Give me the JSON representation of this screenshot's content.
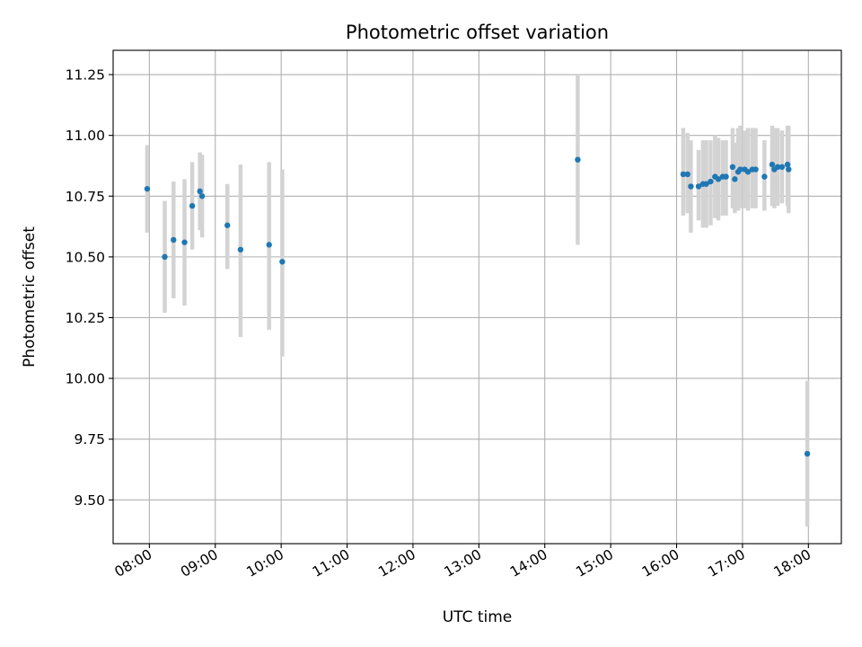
{
  "chart_data": {
    "type": "scatter",
    "title": "Photometric offset variation",
    "xlabel": "UTC time",
    "ylabel": "Photometric offset",
    "x_ticks": [
      "08:00",
      "09:00",
      "10:00",
      "11:00",
      "12:00",
      "13:00",
      "14:00",
      "15:00",
      "16:00",
      "17:00",
      "18:00"
    ],
    "y_ticks": [
      "9.50",
      "9.75",
      "10.00",
      "10.25",
      "10.50",
      "10.75",
      "11.00",
      "11.25"
    ],
    "xlim": [
      "07:27",
      "18:30"
    ],
    "ylim": [
      9.32,
      11.35
    ],
    "grid": true,
    "marker_color": "#1f77b4",
    "errorbar_color": "#d3d3d3",
    "series": [
      {
        "points": [
          {
            "x": "07:58",
            "y": 10.78,
            "ylo": 10.6,
            "yhi": 10.96
          },
          {
            "x": "08:14",
            "y": 10.5,
            "ylo": 10.27,
            "yhi": 10.73
          },
          {
            "x": "08:22",
            "y": 10.57,
            "ylo": 10.33,
            "yhi": 10.81
          },
          {
            "x": "08:32",
            "y": 10.56,
            "ylo": 10.3,
            "yhi": 10.82
          },
          {
            "x": "08:39",
            "y": 10.71,
            "ylo": 10.53,
            "yhi": 10.89
          },
          {
            "x": "08:46",
            "y": 10.77,
            "ylo": 10.61,
            "yhi": 10.93
          },
          {
            "x": "08:48",
            "y": 10.75,
            "ylo": 10.58,
            "yhi": 10.92
          },
          {
            "x": "09:11",
            "y": 10.63,
            "ylo": 10.45,
            "yhi": 10.8
          },
          {
            "x": "09:23",
            "y": 10.53,
            "ylo": 10.17,
            "yhi": 10.88
          },
          {
            "x": "09:49",
            "y": 10.55,
            "ylo": 10.2,
            "yhi": 10.89
          },
          {
            "x": "10:01",
            "y": 10.48,
            "ylo": 10.09,
            "yhi": 10.86
          },
          {
            "x": "14:30",
            "y": 10.9,
            "ylo": 10.55,
            "yhi": 11.25
          },
          {
            "x": "16:06",
            "y": 10.84,
            "ylo": 10.67,
            "yhi": 11.03
          },
          {
            "x": "16:10",
            "y": 10.84,
            "ylo": 10.68,
            "yhi": 11.01
          },
          {
            "x": "16:13",
            "y": 10.79,
            "ylo": 10.6,
            "yhi": 10.98
          },
          {
            "x": "16:20",
            "y": 10.79,
            "ylo": 10.65,
            "yhi": 10.94
          },
          {
            "x": "16:24",
            "y": 10.8,
            "ylo": 10.62,
            "yhi": 10.98
          },
          {
            "x": "16:27",
            "y": 10.8,
            "ylo": 10.62,
            "yhi": 10.98
          },
          {
            "x": "16:31",
            "y": 10.81,
            "ylo": 10.63,
            "yhi": 10.98
          },
          {
            "x": "16:35",
            "y": 10.83,
            "ylo": 10.66,
            "yhi": 11.0
          },
          {
            "x": "16:38",
            "y": 10.82,
            "ylo": 10.65,
            "yhi": 10.99
          },
          {
            "x": "16:42",
            "y": 10.83,
            "ylo": 10.67,
            "yhi": 10.98
          },
          {
            "x": "16:45",
            "y": 10.83,
            "ylo": 10.67,
            "yhi": 10.98
          },
          {
            "x": "16:51",
            "y": 10.87,
            "ylo": 10.7,
            "yhi": 11.03
          },
          {
            "x": "16:53",
            "y": 10.82,
            "ylo": 10.68,
            "yhi": 10.97
          },
          {
            "x": "16:56",
            "y": 10.85,
            "ylo": 10.69,
            "yhi": 11.03
          },
          {
            "x": "16:58",
            "y": 10.86,
            "ylo": 10.7,
            "yhi": 11.04
          },
          {
            "x": "17:02",
            "y": 10.86,
            "ylo": 10.7,
            "yhi": 11.02
          },
          {
            "x": "17:05",
            "y": 10.85,
            "ylo": 10.69,
            "yhi": 11.03
          },
          {
            "x": "17:09",
            "y": 10.86,
            "ylo": 10.7,
            "yhi": 11.03
          },
          {
            "x": "17:12",
            "y": 10.86,
            "ylo": 10.7,
            "yhi": 11.03
          },
          {
            "x": "17:20",
            "y": 10.83,
            "ylo": 10.69,
            "yhi": 10.98
          },
          {
            "x": "17:27",
            "y": 10.88,
            "ylo": 10.71,
            "yhi": 11.04
          },
          {
            "x": "17:29",
            "y": 10.86,
            "ylo": 10.7,
            "yhi": 11.03
          },
          {
            "x": "17:32",
            "y": 10.87,
            "ylo": 10.71,
            "yhi": 11.03
          },
          {
            "x": "17:36",
            "y": 10.87,
            "ylo": 10.72,
            "yhi": 11.02
          },
          {
            "x": "17:41",
            "y": 10.88,
            "ylo": 10.71,
            "yhi": 11.04
          },
          {
            "x": "17:42",
            "y": 10.86,
            "ylo": 10.68,
            "yhi": 11.04
          },
          {
            "x": "17:59",
            "y": 9.69,
            "ylo": 9.39,
            "yhi": 9.99
          }
        ]
      }
    ]
  }
}
